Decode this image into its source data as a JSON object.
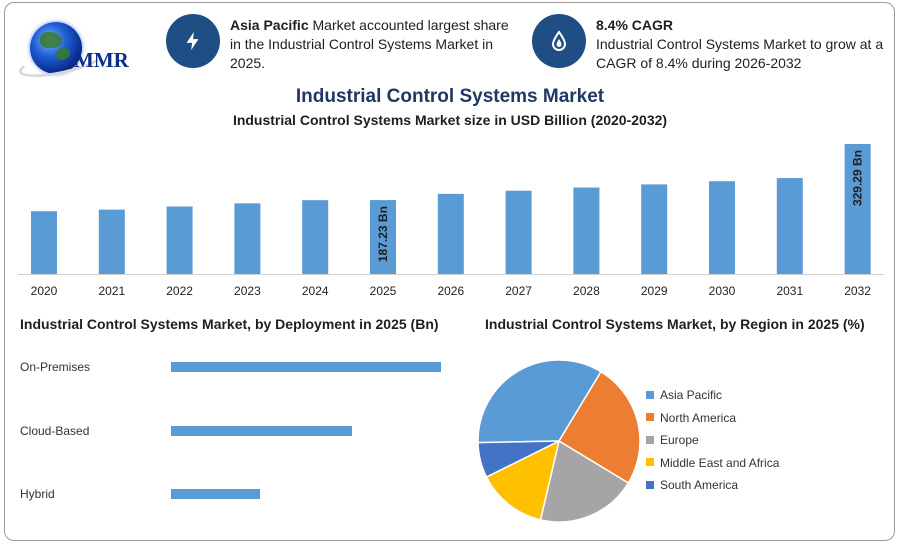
{
  "brand": {
    "logo_text": "MMR"
  },
  "header": {
    "stat1": {
      "bold": "Asia Pacific",
      "rest": " Market accounted largest share in the Industrial Control Systems Market in 2025.",
      "icon": "lightning-bolt-icon"
    },
    "stat2": {
      "title": "8.4% CAGR",
      "text": "Industrial Control Systems Market to grow at a CAGR of 8.4% during 2026-2032",
      "icon": "growth-drop-icon"
    }
  },
  "titles": {
    "main": "Industrial Control Systems Market",
    "subtitle": "Industrial Control Systems Market size in USD Billion (2020-2032)",
    "deployment": "Industrial Control Systems Market, by Deployment in 2025 (Bn)",
    "region": "Industrial Control Systems Market, by Region in 2025 (%)"
  },
  "colors": {
    "bar": "#5b9bd5",
    "title": "#1f3864",
    "icon_bg": "#1f4e84"
  },
  "chart_data": [
    {
      "type": "bar",
      "title": "Industrial Control Systems Market size in USD Billion (2020-2032)",
      "categories": [
        "2020",
        "2021",
        "2022",
        "2023",
        "2024",
        "2025",
        "2026",
        "2027",
        "2028",
        "2029",
        "2030",
        "2031",
        "2032"
      ],
      "values": [
        159,
        163,
        171,
        179,
        187,
        187.23,
        203,
        211,
        219,
        227,
        235,
        243,
        329.29
      ],
      "data_labels": {
        "5": "187.23 Bn",
        "12": "329.29 Bn"
      },
      "grid": false
    },
    {
      "type": "bar",
      "orientation": "horizontal",
      "title": "Industrial Control Systems Market, by Deployment in 2025 (Bn)",
      "categories": [
        "On-Premises",
        "Cloud-Based",
        "Hybrid"
      ],
      "values": [
        100,
        67,
        33
      ]
    },
    {
      "type": "pie",
      "title": "Industrial Control Systems Market, by Region in 2025 (%)",
      "categories": [
        "Asia Pacific",
        "North America",
        "Europe",
        "Middle East and Africa",
        "South America"
      ],
      "values": [
        34,
        25,
        20,
        14,
        7
      ],
      "colors": [
        "#5b9bd5",
        "#ed7d31",
        "#a5a5a5",
        "#ffc000",
        "#4472c4"
      ],
      "legend": "right"
    }
  ]
}
